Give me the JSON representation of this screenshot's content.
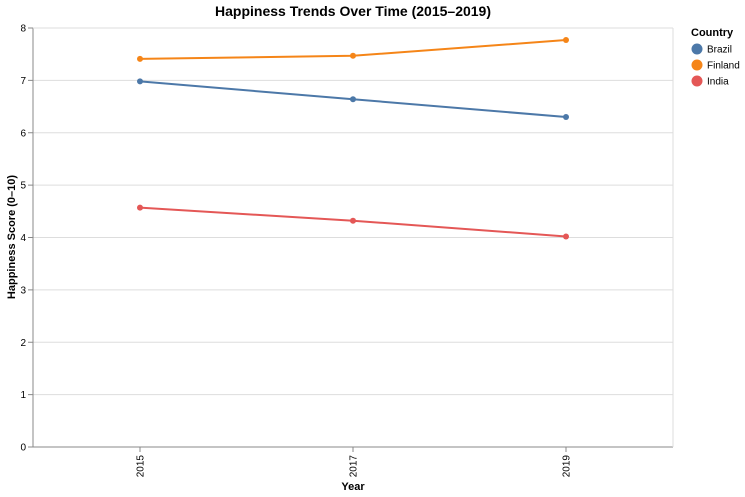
{
  "chart_data": {
    "type": "line",
    "title": "Happiness Trends Over Time (2015–2019)",
    "xlabel": "Year",
    "ylabel": "Happiness Score (0–10)",
    "categories": [
      "2015",
      "2017",
      "2019"
    ],
    "ylim": [
      0,
      8
    ],
    "y_ticks": [
      "0",
      "1",
      "2",
      "3",
      "4",
      "5",
      "6",
      "7",
      "8"
    ],
    "grid": true,
    "legend": {
      "title": "Country",
      "placement": "right"
    },
    "series": [
      {
        "name": "Brazil",
        "color": "#4c78a8",
        "values": [
          6.98,
          6.64,
          6.3
        ]
      },
      {
        "name": "Finland",
        "color": "#f58518",
        "values": [
          7.41,
          7.47,
          7.77
        ]
      },
      {
        "name": "India",
        "color": "#e45756",
        "values": [
          4.57,
          4.32,
          4.02
        ]
      }
    ]
  }
}
